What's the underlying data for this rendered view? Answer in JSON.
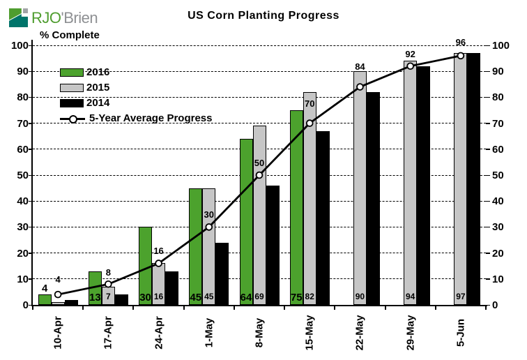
{
  "logo": {
    "part1": "RJO",
    "part2": "'Brien"
  },
  "title": "US Corn Planting Progress",
  "y_axis_label": "% Complete",
  "colors": {
    "bar_2016": "#4ca22d",
    "bar_2015": "#c6c6c6",
    "bar_2014": "#000000",
    "line": "#000000",
    "marker_fill": "#ffffff",
    "logo_green": "#4f9d2f",
    "logo_teal": "#00746a",
    "logo_gray": "#a2a4a7",
    "logo_text_gray": "#8e9093"
  },
  "legend": {
    "items": [
      {
        "label": "2016",
        "type": "bar",
        "color_key": "bar_2016"
      },
      {
        "label": "2015",
        "type": "bar",
        "color_key": "bar_2015"
      },
      {
        "label": "2014",
        "type": "bar",
        "color_key": "bar_2014"
      },
      {
        "label": "5-Year Average Progress",
        "type": "line",
        "color_key": "line"
      }
    ],
    "position": "top-left-inside"
  },
  "chart_data": {
    "type": "bar",
    "title": "US Corn Planting Progress",
    "ylabel": "% Complete",
    "xlabel": "",
    "ylim": [
      0,
      100
    ],
    "ytick_step": 10,
    "grid": "dashed-horizontal",
    "dual_y_axis": true,
    "categories": [
      "10-Apr",
      "17-Apr",
      "24-Apr",
      "1-May",
      "8-May",
      "15-May",
      "22-May",
      "29-May",
      "5-Jun"
    ],
    "series": [
      {
        "name": "2016",
        "values": [
          4,
          13,
          30,
          45,
          64,
          75,
          null,
          null,
          null
        ],
        "labels": [
          "4",
          "13",
          "30",
          "45",
          "64",
          "75",
          "",
          "",
          ""
        ]
      },
      {
        "name": "2015",
        "values": [
          1,
          7,
          16,
          45,
          69,
          82,
          90,
          94,
          97
        ],
        "labels": [
          "",
          "7",
          "16",
          "45",
          "69",
          "82",
          "90",
          "94",
          "97"
        ]
      },
      {
        "name": "2014",
        "values": [
          2,
          4,
          13,
          24,
          46,
          67,
          82,
          92,
          97
        ],
        "labels": [
          "",
          "",
          "",
          "",
          "",
          "",
          "",
          "",
          ""
        ]
      }
    ],
    "line_series": {
      "name": "5-Year Average Progress",
      "values": [
        4,
        8,
        16,
        30,
        50,
        70,
        84,
        92,
        96
      ],
      "labels": [
        "4",
        "8",
        "16",
        "30",
        "50",
        "70",
        "84",
        "92",
        "96"
      ],
      "label_center_dy": [
        -22,
        -17,
        -18,
        -18,
        -18,
        -29,
        -30,
        -18,
        -20
      ]
    }
  }
}
